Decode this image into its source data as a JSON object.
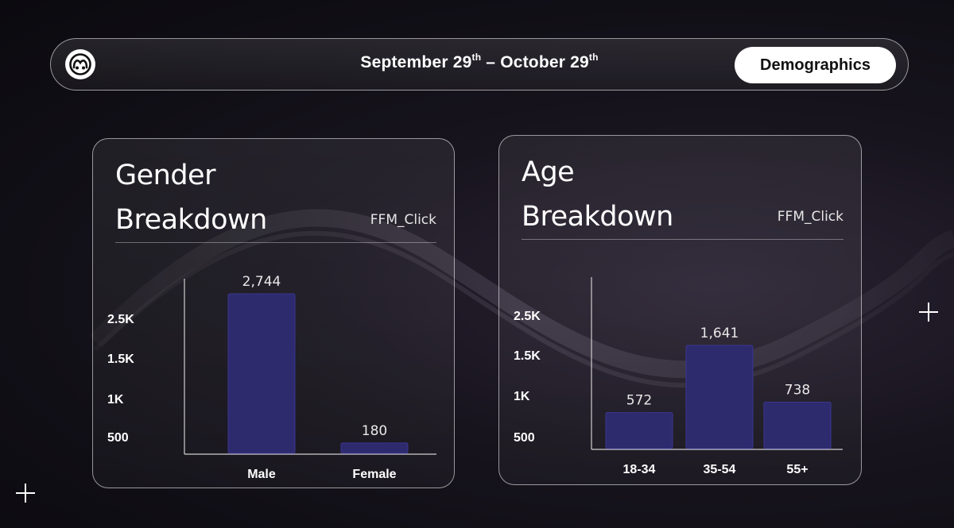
{
  "header": {
    "date_range_start": "September 29",
    "date_range_start_sup": "th",
    "date_range_sep": " – ",
    "date_range_end": "October 29",
    "date_range_end_sup": "th",
    "demographics_label": "Demographics"
  },
  "colors": {
    "bar": "#2d2a6e",
    "bar_edge": "#3a3690"
  },
  "gender": {
    "title_line1": "Gender",
    "title_line2": "Breakdown",
    "subtitle": "FFM_Click",
    "yticks": [
      "2.5K",
      "1.5K",
      "1K",
      "500"
    ]
  },
  "age": {
    "title_line1": "Age",
    "title_line2": "Breakdown",
    "subtitle": "FFM_Click",
    "yticks": [
      "2.5K",
      "1.5K",
      "1K",
      "500"
    ]
  },
  "chart_data": [
    {
      "type": "bar",
      "categories": [
        "Male",
        "Female"
      ],
      "values": [
        2744,
        180
      ],
      "value_labels": [
        "2,744",
        "180"
      ],
      "title": "Gender Breakdown",
      "subtitle": "FFM_Click",
      "ytick_labels": [
        "2.5K",
        "1.5K",
        "1K",
        "500"
      ],
      "grid": false
    },
    {
      "type": "bar",
      "categories": [
        "18-34",
        "35-54",
        "55+"
      ],
      "values": [
        572,
        1641,
        738
      ],
      "value_labels": [
        "572",
        "1,641",
        "738"
      ],
      "title": "Age Breakdown",
      "subtitle": "FFM_Click",
      "ytick_labels": [
        "2.5K",
        "1.5K",
        "1K",
        "500"
      ],
      "grid": false
    }
  ]
}
